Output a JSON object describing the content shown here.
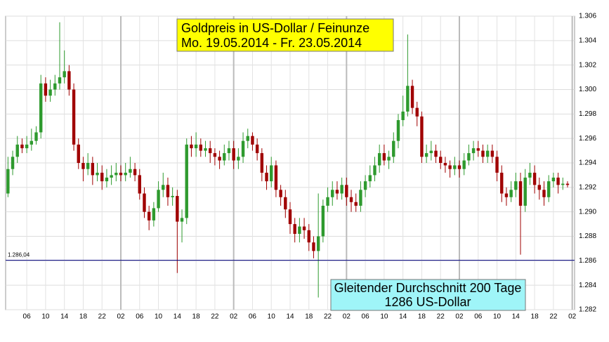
{
  "chart_data": {
    "type": "candlestick",
    "title": "Goldpreis in US-Dollar / Feinunze",
    "subtitle": "Mo. 19.05.2014  - Fr. 23.05.2014",
    "annotation": [
      "Gleitender Durchschnitt 200 Tage",
      "1286 US-Dollar"
    ],
    "categories": [
      null,
      null,
      null,
      null,
      "06",
      null,
      null,
      null,
      "10",
      null,
      null,
      null,
      "14",
      null,
      null,
      null,
      "18",
      null,
      null,
      null,
      "22",
      null,
      null,
      null,
      "02",
      null,
      null,
      null,
      "06",
      null,
      null,
      null,
      "10",
      null,
      null,
      null,
      "14",
      null,
      null,
      null,
      "18",
      null,
      null,
      null,
      "22",
      null,
      null,
      null,
      "02",
      null,
      null,
      null,
      "06",
      null,
      null,
      null,
      "10",
      null,
      null,
      null,
      "14",
      null,
      null,
      null,
      "18",
      null,
      null,
      null,
      "22",
      null,
      null,
      null,
      "02",
      null,
      null,
      null,
      "06",
      null,
      null,
      null,
      "10",
      null,
      null,
      null,
      "14",
      null,
      null,
      null,
      "18",
      null,
      null,
      null,
      "22",
      null,
      null,
      null,
      "02",
      null,
      null,
      null,
      "06",
      null,
      null,
      null,
      "10",
      null,
      null,
      null,
      "14",
      null,
      null,
      null,
      "18",
      null,
      null,
      null,
      "22",
      null,
      null,
      null,
      "02"
    ],
    "open": [
      1.2915,
      1.2935,
      1.2945,
      1.2955,
      1.2952,
      1.2955,
      1.2958,
      1.2965,
      1.3005,
      1.2995,
      1.3,
      1.3005,
      1.301,
      1.3015,
      1.3,
      1.2955,
      1.294,
      1.2935,
      1.294,
      1.293,
      1.2932,
      1.2925,
      1.2928,
      1.293,
      1.2932,
      1.293,
      1.2932,
      1.2935,
      1.293,
      1.2915,
      1.29,
      1.2893,
      1.2903,
      1.2918,
      1.2922,
      1.2912,
      1.2913,
      1.2892,
      1.2895,
      1.2955,
      1.2952,
      1.2955,
      1.295,
      1.2952,
      1.2948,
      1.2945,
      1.2942,
      1.2948,
      1.2952,
      1.2942,
      1.2945,
      1.2958,
      1.2962,
      1.2955,
      1.2948,
      1.2932,
      1.2925,
      1.2938,
      1.2918,
      1.2912,
      1.2902,
      1.289,
      1.2882,
      1.2888,
      1.2885,
      1.2875,
      1.2868,
      1.288,
      1.2905,
      1.2912,
      1.2918,
      1.2915,
      1.2922,
      1.2912,
      1.2908,
      1.2905,
      1.2918,
      1.2925,
      1.293,
      1.2938,
      1.2948,
      1.2942,
      1.2945,
      1.2958,
      1.2975,
      1.2982,
      1.3003,
      1.2985,
      1.2978,
      1.2945,
      1.2948,
      1.295,
      1.2945,
      1.294,
      1.2938,
      1.2935,
      1.2938,
      1.2935,
      1.2942,
      1.2948,
      1.2952,
      1.295,
      1.2945,
      1.295,
      1.2945,
      1.2932,
      1.2915,
      1.2912,
      1.2918,
      1.2925,
      1.2905,
      1.2928,
      1.2932,
      1.2922,
      1.2918,
      1.2912,
      1.2925,
      1.2928,
      1.2922,
      1.2923,
      null
    ],
    "high": [
      1.2945,
      1.295,
      1.2962,
      1.296,
      1.2962,
      1.2968,
      1.297,
      1.3012,
      1.301,
      1.3008,
      1.3012,
      1.3055,
      1.3032,
      1.302,
      1.3005,
      1.296,
      1.2945,
      1.2948,
      1.2945,
      1.294,
      1.2938,
      1.2935,
      1.2938,
      1.294,
      1.2938,
      1.294,
      1.2945,
      1.294,
      1.2935,
      1.292,
      1.2905,
      1.2908,
      1.2925,
      1.2932,
      1.2928,
      1.292,
      1.2918,
      1.2902,
      1.296,
      1.2962,
      1.2965,
      1.296,
      1.2958,
      1.2958,
      1.2952,
      1.295,
      1.2955,
      1.2958,
      1.2958,
      1.2952,
      1.2965,
      1.2968,
      1.2965,
      1.296,
      1.2952,
      1.2938,
      1.2945,
      1.2942,
      1.2922,
      1.2918,
      1.2908,
      1.2895,
      1.2895,
      1.2895,
      1.289,
      1.288,
      1.2915,
      1.291,
      1.292,
      1.2925,
      1.2925,
      1.2928,
      1.2928,
      1.2918,
      1.2915,
      1.2925,
      1.293,
      1.2938,
      1.2945,
      1.2955,
      1.2955,
      1.295,
      1.2965,
      1.298,
      1.2995,
      1.3045,
      1.3008,
      1.299,
      1.2982,
      1.2955,
      1.2958,
      1.2955,
      1.295,
      1.2945,
      1.2942,
      1.2945,
      1.2942,
      1.2948,
      1.2955,
      1.2958,
      1.2958,
      1.2955,
      1.2955,
      1.2955,
      1.295,
      1.2938,
      1.292,
      1.2925,
      1.2932,
      1.2932,
      1.2935,
      1.294,
      1.2938,
      1.2928,
      1.2925,
      1.293,
      1.2932,
      1.2932,
      1.2928,
      1.2925,
      null
    ],
    "low": [
      1.2912,
      1.293,
      1.294,
      1.2948,
      1.2948,
      1.295,
      1.2955,
      1.296,
      1.299,
      1.299,
      1.2995,
      1.3,
      1.3005,
      1.2995,
      1.295,
      1.2935,
      1.2925,
      1.293,
      1.2922,
      1.2925,
      1.2918,
      1.292,
      1.2922,
      1.2925,
      1.2925,
      1.2925,
      1.2928,
      1.2925,
      1.291,
      1.2895,
      1.2885,
      1.2888,
      1.29,
      1.2912,
      1.2905,
      1.2905,
      1.285,
      1.2875,
      1.289,
      1.2945,
      1.2945,
      1.2945,
      1.2945,
      1.294,
      1.2938,
      1.2935,
      1.2938,
      1.2942,
      1.2935,
      1.2935,
      1.294,
      1.2952,
      1.295,
      1.2942,
      1.2925,
      1.2918,
      1.292,
      1.2912,
      1.2905,
      1.2895,
      1.2882,
      1.2875,
      1.2875,
      1.2878,
      1.2868,
      1.2862,
      1.283,
      1.2875,
      1.29,
      1.2905,
      1.291,
      1.291,
      1.2905,
      1.29,
      1.29,
      1.29,
      1.2912,
      1.292,
      1.2925,
      1.2932,
      1.2938,
      1.2935,
      1.294,
      1.2952,
      1.297,
      1.2978,
      1.298,
      1.297,
      1.294,
      1.294,
      1.2942,
      1.294,
      1.2935,
      1.2932,
      1.2928,
      1.293,
      1.2928,
      1.293,
      1.2938,
      1.2942,
      1.2945,
      1.294,
      1.294,
      1.294,
      1.2925,
      1.2908,
      1.2905,
      1.2908,
      1.2912,
      1.2865,
      1.29,
      1.2922,
      1.2915,
      1.291,
      1.2905,
      1.2908,
      1.292,
      1.2915,
      1.2918,
      1.292,
      null
    ],
    "close": [
      1.2935,
      1.2945,
      1.2955,
      1.2952,
      1.2955,
      1.2958,
      1.2965,
      1.3005,
      1.2995,
      1.3,
      1.3005,
      1.301,
      1.3015,
      1.3,
      1.2955,
      1.294,
      1.2935,
      1.294,
      1.293,
      1.2932,
      1.2925,
      1.2928,
      1.293,
      1.2932,
      1.293,
      1.2932,
      1.2935,
      1.293,
      1.2915,
      1.29,
      1.2893,
      1.2903,
      1.2918,
      1.2922,
      1.2912,
      1.2913,
      1.2892,
      1.2895,
      1.2955,
      1.2952,
      1.2955,
      1.295,
      1.2952,
      1.2948,
      1.2945,
      1.2942,
      1.2948,
      1.2952,
      1.2942,
      1.2945,
      1.2958,
      1.2962,
      1.2955,
      1.2948,
      1.2932,
      1.2925,
      1.2938,
      1.2918,
      1.2912,
      1.2902,
      1.289,
      1.2882,
      1.2888,
      1.2885,
      1.2875,
      1.2868,
      1.288,
      1.2905,
      1.2912,
      1.2918,
      1.2915,
      1.2922,
      1.2912,
      1.2908,
      1.2905,
      1.2918,
      1.2925,
      1.293,
      1.2938,
      1.2948,
      1.2942,
      1.2945,
      1.2958,
      1.2975,
      1.2982,
      1.3003,
      1.2985,
      1.2978,
      1.2945,
      1.2948,
      1.295,
      1.2945,
      1.294,
      1.2938,
      1.2935,
      1.2938,
      1.2935,
      1.2942,
      1.2948,
      1.2952,
      1.295,
      1.2945,
      1.295,
      1.2945,
      1.2932,
      1.2915,
      1.2912,
      1.2918,
      1.2925,
      1.2905,
      1.2928,
      1.2932,
      1.2922,
      1.2918,
      1.2912,
      1.2925,
      1.2928,
      1.2922,
      1.2923,
      1.2922,
      null
    ],
    "up_color": "#2e9a2e",
    "down_color": "#a00000",
    "ylim": [
      1.282,
      1.306
    ],
    "yticks": [
      1.282,
      1.284,
      1.286,
      1.288,
      {
        "value": 1.29,
        "label": "1.290"
      },
      1.292,
      1.294,
      1.296,
      1.298,
      {
        "value": 1.3,
        "label": "1.300"
      },
      1.302,
      1.304,
      1.306
    ],
    "grid": true,
    "reference_line": {
      "value": 1.28604,
      "label": "1.286,04",
      "color": "#000080"
    }
  }
}
